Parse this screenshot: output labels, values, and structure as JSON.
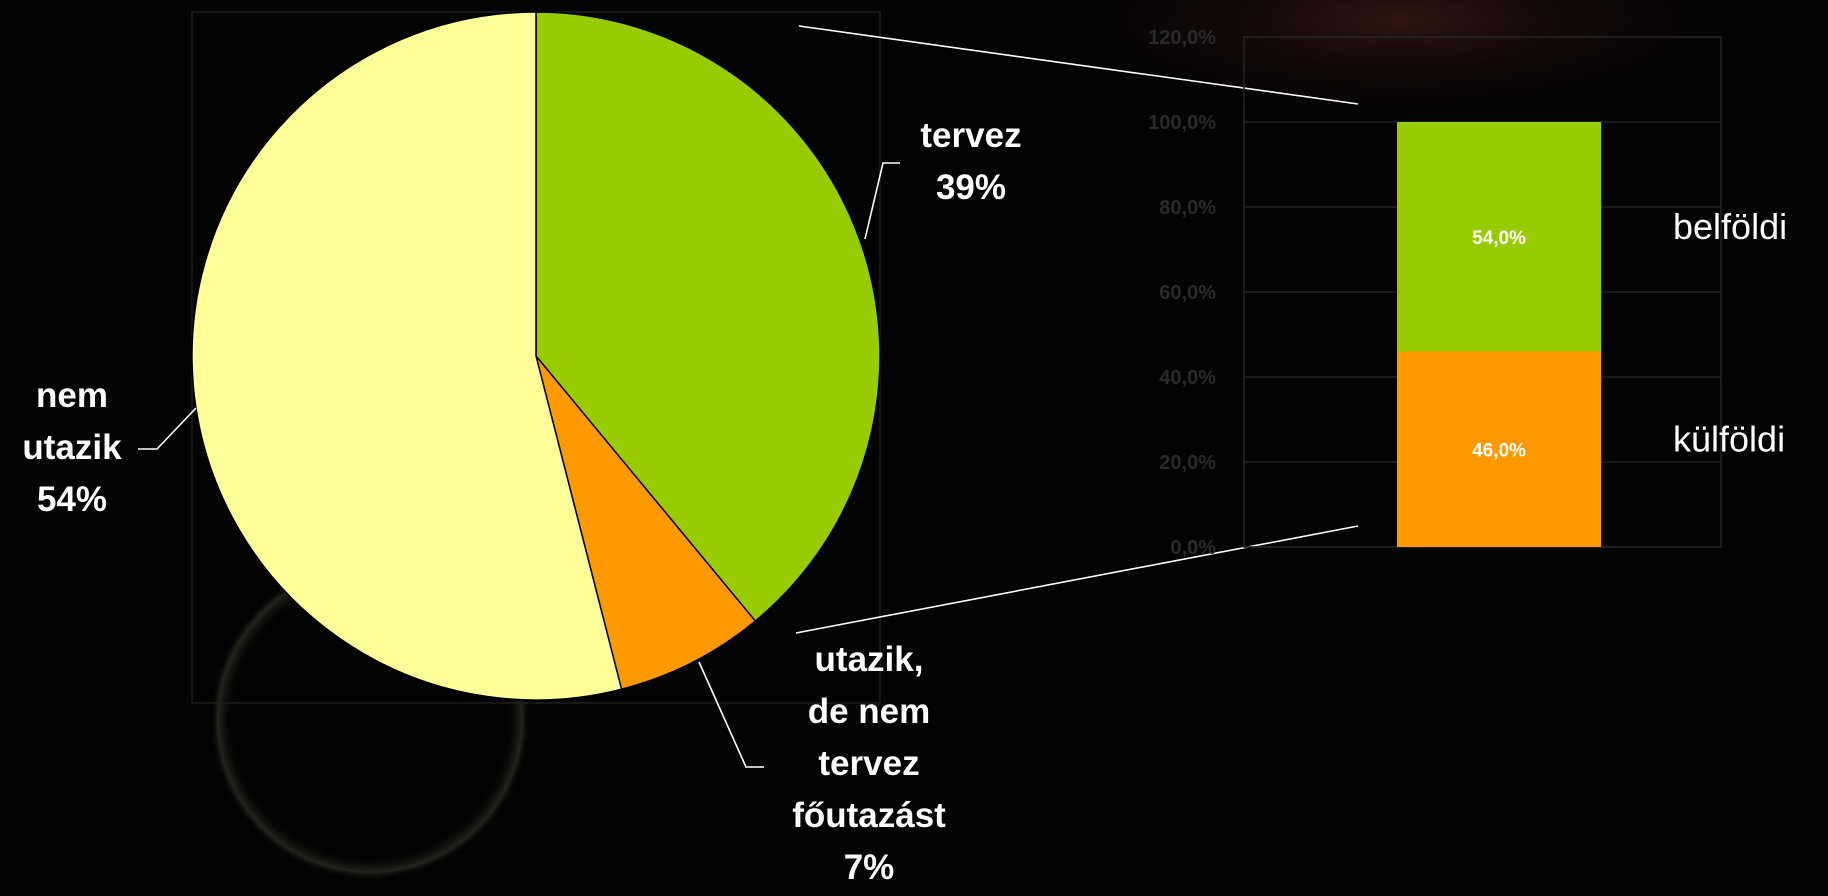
{
  "chart_data": [
    {
      "type": "pie",
      "categories": [
        "tervez",
        "utazik, de nem tervez főutazást",
        "nem utazik"
      ],
      "values": [
        39,
        7,
        54
      ],
      "value_labels": [
        "39%",
        "7%",
        "54%"
      ],
      "colors": [
        "#99cc00",
        "#ff9900",
        "#ffff99"
      ]
    },
    {
      "type": "bar",
      "stacked": true,
      "categories": [
        null
      ],
      "series": [
        {
          "name": "külföldi",
          "color": "#ff9900",
          "values": [
            46
          ],
          "value_labels": [
            "46,0%"
          ]
        },
        {
          "name": "belföldi",
          "color": "#99cc00",
          "values": [
            54
          ],
          "value_labels": [
            "54,0%"
          ]
        }
      ],
      "ylim": [
        0,
        120
      ],
      "yticks": [
        {
          "value": 0,
          "label": "0,0%"
        },
        {
          "value": 20,
          "label": "20,0%"
        },
        {
          "value": 40,
          "label": "40,0%"
        },
        {
          "value": 60,
          "label": "60,0%"
        },
        {
          "value": 80,
          "label": "80,0%"
        },
        {
          "value": 100,
          "label": "100,0%"
        },
        {
          "value": 120,
          "label": "120,0%"
        }
      ],
      "grid": true
    }
  ]
}
